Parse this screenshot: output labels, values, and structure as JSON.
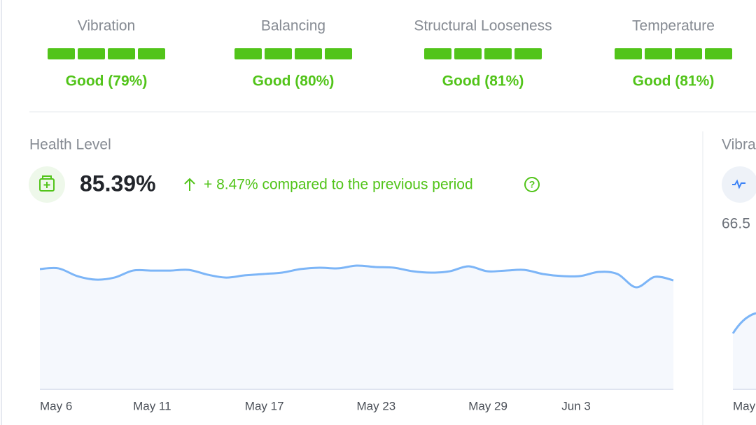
{
  "metrics": [
    {
      "label": "Vibration",
      "status": "Good (79%)"
    },
    {
      "label": "Balancing",
      "status": "Good (80%)"
    },
    {
      "label": "Structural Looseness",
      "status": "Good (81%)"
    },
    {
      "label": "Temperature",
      "status": "Good (81%)"
    }
  ],
  "health": {
    "title": "Health Level",
    "value": "85.39%",
    "change": "+ 8.47% compared to the previous period"
  },
  "chart_data": {
    "type": "line",
    "categories": [
      "May 6",
      null,
      null,
      null,
      null,
      "May 11",
      null,
      null,
      null,
      null,
      null,
      "May 17",
      null,
      null,
      null,
      null,
      null,
      "May 23",
      null,
      null,
      null,
      null,
      null,
      "May 29",
      null,
      null,
      null,
      null,
      "Jun 3",
      null,
      null,
      null,
      null,
      null,
      null
    ],
    "series": [
      {
        "color": "#7cb5f7",
        "values": [
          87.8,
          88.3,
          82.7,
          80.1,
          81.6,
          86.7,
          86.7,
          86.7,
          87.2,
          83.7,
          81.6,
          83.2,
          84.2,
          85.2,
          87.8,
          88.8,
          88.3,
          90.3,
          89.3,
          88.8,
          86.2,
          85.2,
          86.2,
          89.8,
          86.2,
          86.7,
          87.2,
          84.2,
          82.7,
          82.7,
          85.7,
          84.2,
          74.5,
          82.1,
          79.6
        ]
      }
    ],
    "ylim": [
      0,
      100
    ]
  },
  "side_panel": {
    "title": "Vibra",
    "value": "66.5",
    "x_label": "May"
  }
}
